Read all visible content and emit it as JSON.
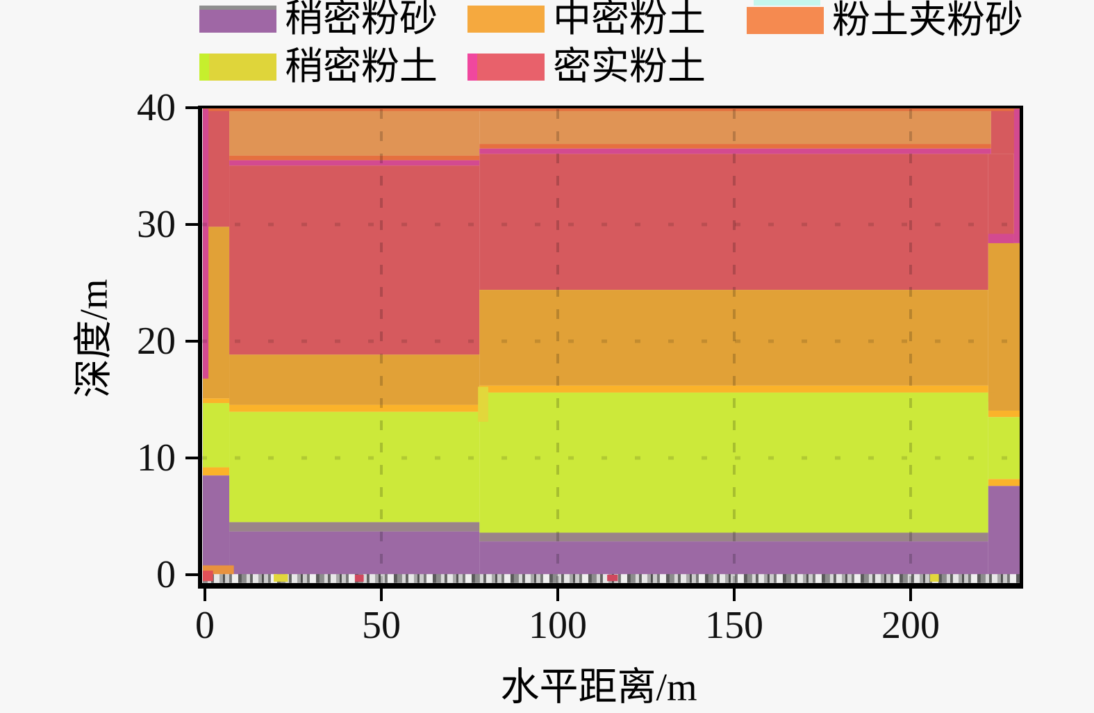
{
  "figure": {
    "background": "#f7f7f7",
    "kind": "geological cross-section stacked profile"
  },
  "palette": {
    "purple": "#9C69A4",
    "green": "#CCE93A",
    "orange": "#E1A137",
    "red": "#D65A5E",
    "salmon": "#E09455",
    "amber": "#FBB32A",
    "yellow_notch": "#E2D73B",
    "grey_band": "#9A8489",
    "edge_orangered": "#E5703F",
    "edge_magenta": "#D34A90",
    "corner_orange": "#E8923F",
    "corner_red": "#E05058",
    "speck_red": "#D0485E",
    "cyan": "#C5F6EC",
    "legend_purple": "#9F67A5",
    "legend_orange": "#F5A93F",
    "legend_salmon": "#F58A50",
    "legend_green": "#DFD53A",
    "legend_red": "#E8616B",
    "axis": "#000000",
    "grid_v": "rgba(0,0,0,0.18)",
    "grid_h": "rgba(0,0,0,0.13)",
    "mottle_greys": [
      "#8c8c8c",
      "#d9d9d9",
      "#636363",
      "#e8e8e8",
      "#a8a8a8",
      "#4f4f4f",
      "#cccccc",
      "#777777",
      "#f0f0f0",
      "#5a5a5a"
    ]
  },
  "legend": {
    "rows": 2,
    "items": [
      {
        "label": "稍密粉砂",
        "color": "legend_purple",
        "accent_top": "#8F8F8F",
        "col": 0,
        "row": 0
      },
      {
        "label": "中密粉土",
        "color": "legend_orange",
        "accent_top": "",
        "col": 1,
        "row": 0
      },
      {
        "label": "粉土夹粉砂",
        "color": "legend_salmon",
        "accent_top": "",
        "col": 2,
        "row": 0,
        "partial_swatch_above": "cyan"
      },
      {
        "label": "稍密粉土",
        "color": "legend_green",
        "accent_left": "#C6EF2D",
        "col": 0,
        "row": 1
      },
      {
        "label": "密实粉土",
        "color": "legend_red",
        "accent_left": "#F0479E",
        "col": 1,
        "row": 1
      }
    ]
  },
  "axes": {
    "x": {
      "title": "水平距离/m",
      "ticks": [
        0,
        50,
        100,
        150,
        200
      ],
      "range": [
        0,
        231
      ]
    },
    "y": {
      "title": "深度/m",
      "ticks": [
        0,
        10,
        20,
        30,
        40
      ],
      "range": [
        0,
        40
      ]
    }
  },
  "chart_data": {
    "type": "area",
    "subtype": "stacked-soil-depth-profile",
    "xlabel": "水平距离/m",
    "ylabel": "深度/m",
    "x_range": [
      0,
      231
    ],
    "depth_range": [
      0,
      40
    ],
    "x_ticks": [
      0,
      50,
      100,
      150,
      200
    ],
    "depth_ticks": [
      0,
      10,
      20,
      30,
      40
    ],
    "gridlines": {
      "x": [
        50,
        100,
        150,
        200
      ],
      "depth": [
        10,
        20,
        30
      ],
      "style": "dashed"
    },
    "legend_units": [
      "稍密粉砂",
      "中密粉土",
      "粉土夹粉砂",
      "稍密粉土",
      "密实粉土"
    ],
    "layers": [
      {
        "name": "粉土夹粉砂",
        "color": "salmon",
        "unit": true,
        "segments": [
          [
            6.9,
            77.8,
            39.9,
            35.9
          ],
          [
            77.8,
            222.8,
            39.9,
            36.9
          ]
        ]
      },
      {
        "name": "密实粉土",
        "color": "red",
        "unit": true,
        "segments": [
          [
            -0.6,
            6.9,
            39.9,
            29.8
          ],
          [
            6.9,
            77.8,
            35.05,
            18.85
          ],
          [
            77.8,
            222,
            36.05,
            24.4
          ],
          [
            222,
            229.3,
            36.05,
            28.4
          ],
          [
            222.8,
            231,
            39.9,
            36.05
          ]
        ]
      },
      {
        "name": "中密粉土",
        "color": "orange",
        "unit": true,
        "segments": [
          [
            -0.6,
            6.9,
            29.8,
            15.1
          ],
          [
            6.9,
            77.8,
            18.85,
            14.55
          ],
          [
            77.8,
            222,
            24.4,
            16.2
          ],
          [
            222,
            231,
            28.4,
            14.05
          ],
          [
            222,
            224,
            15.6,
            14.8
          ]
        ]
      },
      {
        "name": "boundary-amber-line",
        "color": "amber",
        "unit": false,
        "segments": [
          [
            -0.6,
            6.9,
            15.1,
            14.7
          ],
          [
            6.9,
            77.8,
            14.55,
            13.95
          ],
          [
            77.8,
            222,
            16.2,
            15.6
          ],
          [
            222,
            231,
            14.05,
            13.5
          ],
          [
            -0.6,
            6.9,
            9.2,
            8.5
          ],
          [
            222,
            231,
            8.2,
            7.6
          ]
        ]
      },
      {
        "name": "稍密粉土",
        "color": "green",
        "unit": true,
        "segments": [
          [
            -0.6,
            6.9,
            14.7,
            9.2
          ],
          [
            6.9,
            77.8,
            13.95,
            4.5
          ],
          [
            77.8,
            222,
            15.6,
            3.6
          ],
          [
            222,
            231,
            13.5,
            8.2
          ]
        ]
      },
      {
        "name": "notch-yellow-column",
        "color": "yellow_notch",
        "unit": false,
        "segments": [
          [
            77.4,
            80.3,
            16.1,
            13.1
          ]
        ]
      },
      {
        "name": "boundary-grey-band",
        "color": "grey_band",
        "unit": false,
        "segments": [
          [
            6.9,
            77.8,
            4.5,
            3.7
          ],
          [
            77.8,
            222,
            3.6,
            2.85
          ]
        ]
      },
      {
        "name": "稍密粉砂",
        "color": "purple",
        "unit": true,
        "segments": [
          [
            -0.6,
            6.9,
            8.5,
            0.6
          ],
          [
            6.9,
            77.8,
            3.7,
            0
          ],
          [
            77.8,
            222,
            2.85,
            0
          ],
          [
            222,
            231,
            7.6,
            0
          ]
        ]
      },
      {
        "name": "boundary-orangered-line",
        "color": "edge_orangered",
        "unit": false,
        "segments": [
          [
            -0.6,
            231,
            39.95,
            39.72
          ],
          [
            6.9,
            77.8,
            35.9,
            35.5
          ],
          [
            77.8,
            222.8,
            36.9,
            36.5
          ]
        ]
      },
      {
        "name": "boundary-magenta-line",
        "color": "edge_magenta",
        "unit": false,
        "segments": [
          [
            6.9,
            77.8,
            35.5,
            35.05
          ],
          [
            77.8,
            222.8,
            36.5,
            36.05
          ],
          [
            -0.6,
            1.0,
            39.9,
            16.8
          ],
          [
            229.3,
            231,
            39.9,
            28.4
          ],
          [
            222,
            229.3,
            29.2,
            28.4
          ]
        ]
      },
      {
        "name": "base-mottled-strip",
        "color": "",
        "mottled": true,
        "unit": false,
        "segments": [
          [
            -0.6,
            231,
            0.05,
            -0.7
          ]
        ]
      },
      {
        "name": "strip-speck-yellow",
        "color": "yellow_notch",
        "unit": false,
        "segments": [
          [
            19.5,
            23.5,
            0.05,
            -0.6
          ],
          [
            205.5,
            208,
            0.05,
            -0.6
          ]
        ]
      },
      {
        "name": "strip-speck-red",
        "color": "speck_red",
        "unit": false,
        "segments": [
          [
            42.5,
            45,
            0,
            -0.6
          ],
          [
            114,
            117,
            0,
            -0.55
          ]
        ]
      },
      {
        "name": "corner-block-orange",
        "color": "corner_orange",
        "unit": false,
        "segments": [
          [
            -0.6,
            8.2,
            0.8,
            0.05
          ]
        ]
      },
      {
        "name": "corner-block-red",
        "color": "corner_red",
        "unit": false,
        "segments": [
          [
            -0.6,
            2.3,
            0.35,
            -0.55
          ]
        ]
      }
    ]
  }
}
